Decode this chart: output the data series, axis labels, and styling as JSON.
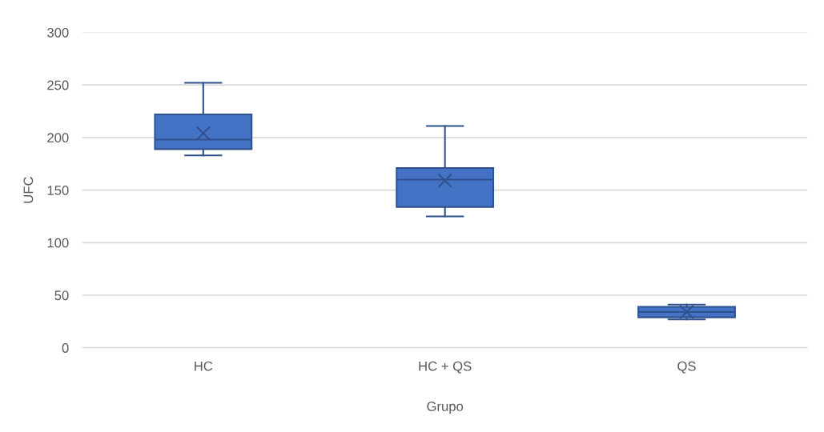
{
  "chart_data": {
    "type": "box",
    "xlabel": "Grupo",
    "ylabel": "UFC",
    "categories": [
      "HC",
      "HC + QS",
      "QS"
    ],
    "series": [
      {
        "color": "#4472c4",
        "boxes": [
          {
            "low": 183,
            "q1": 189,
            "median": 198,
            "q3": 222,
            "high": 252,
            "mean": 204
          },
          {
            "low": 125,
            "q1": 134,
            "median": 160,
            "q3": 171,
            "high": 211,
            "mean": 159
          },
          {
            "low": 27,
            "q1": 29,
            "median": 34,
            "q3": 39,
            "high": 41,
            "mean": 34
          }
        ]
      }
    ],
    "ylim": [
      0,
      300
    ],
    "yticks": [
      0,
      50,
      100,
      150,
      200,
      250,
      300
    ],
    "grid": "y",
    "legend": false
  }
}
